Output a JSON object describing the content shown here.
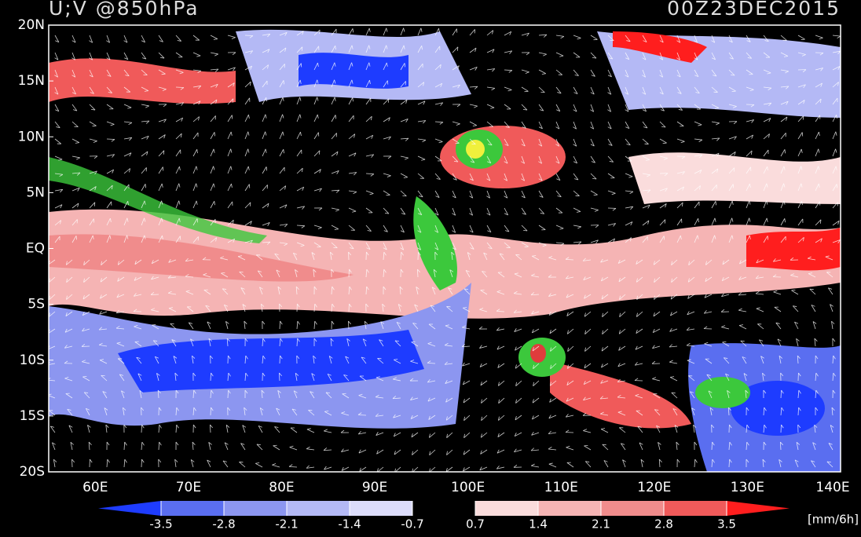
{
  "header": {
    "title": "U;V @850hPa",
    "time": "00Z23DEC2015"
  },
  "map": {
    "lat_labels": [
      "20N",
      "15N",
      "10N",
      "5N",
      "EQ",
      "5S",
      "10S",
      "15S",
      "20S"
    ],
    "lon_labels": [
      "60E",
      "70E",
      "80E",
      "90E",
      "100E",
      "110E",
      "120E",
      "130E",
      "140E"
    ]
  },
  "legend": {
    "labels": [
      "-3.5",
      "-2.8",
      "-2.1",
      "-1.4",
      "-0.7",
      "0.7",
      "1.4",
      "2.1",
      "2.8",
      "3.5"
    ],
    "colors": [
      "#1e3cff",
      "#5a6ef0",
      "#8c96f0",
      "#b4b9f5",
      "#dcdcfa",
      "#000000",
      "#fadcdc",
      "#f5b4b4",
      "#f08c8c",
      "#f05a5a",
      "#ff1e1e"
    ],
    "unit": "[mm/6h]"
  }
}
